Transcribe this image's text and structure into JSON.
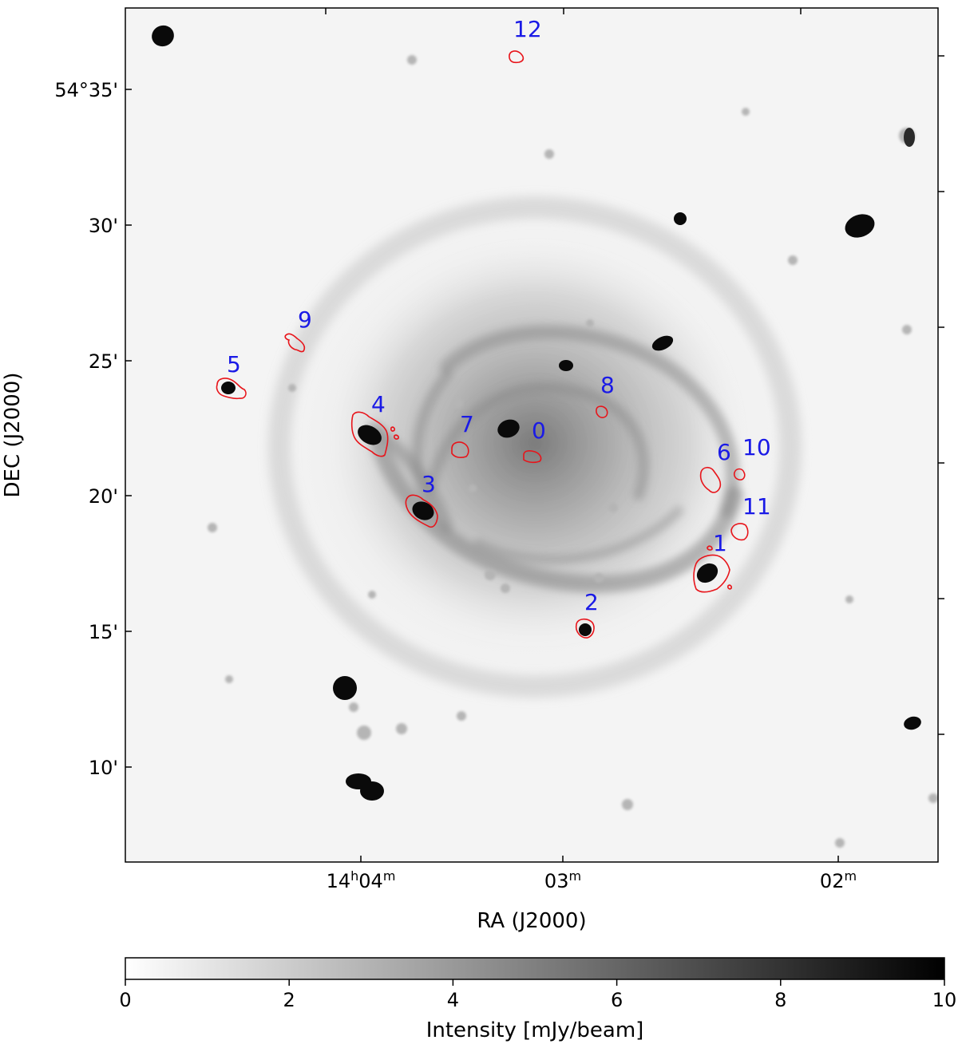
{
  "figure": {
    "x_axis_title": "RA (J2000)",
    "y_axis_title": "DEC (J2000)",
    "ra_ticks": [
      {
        "h": "14",
        "m": "04",
        "key": "ra-1404"
      },
      {
        "h": "",
        "m": "03",
        "key": "ra-1403"
      },
      {
        "h": "",
        "m": "02",
        "key": "ra-1402"
      }
    ],
    "dec_ticks": [
      {
        "text": "54°35'",
        "key": "dec-35"
      },
      {
        "text": "30'",
        "key": "dec-30"
      },
      {
        "text": "25'",
        "key": "dec-25"
      },
      {
        "text": "20'",
        "key": "dec-20"
      },
      {
        "text": "15'",
        "key": "dec-15"
      },
      {
        "text": "10'",
        "key": "dec-10"
      }
    ],
    "colorbar": {
      "label": "Intensity [mJy/beam]",
      "min": 0,
      "max": 10,
      "ticks": [
        "0",
        "2",
        "4",
        "6",
        "8",
        "10"
      ]
    },
    "colors": {
      "contour": "#e8141a",
      "label": "#1a1ae6",
      "source": "#0a0a0a"
    },
    "regions": [
      {
        "id": "0"
      },
      {
        "id": "1"
      },
      {
        "id": "2"
      },
      {
        "id": "3"
      },
      {
        "id": "4"
      },
      {
        "id": "5"
      },
      {
        "id": "6"
      },
      {
        "id": "7"
      },
      {
        "id": "8"
      },
      {
        "id": "9"
      },
      {
        "id": "10"
      },
      {
        "id": "11"
      },
      {
        "id": "12"
      }
    ]
  }
}
